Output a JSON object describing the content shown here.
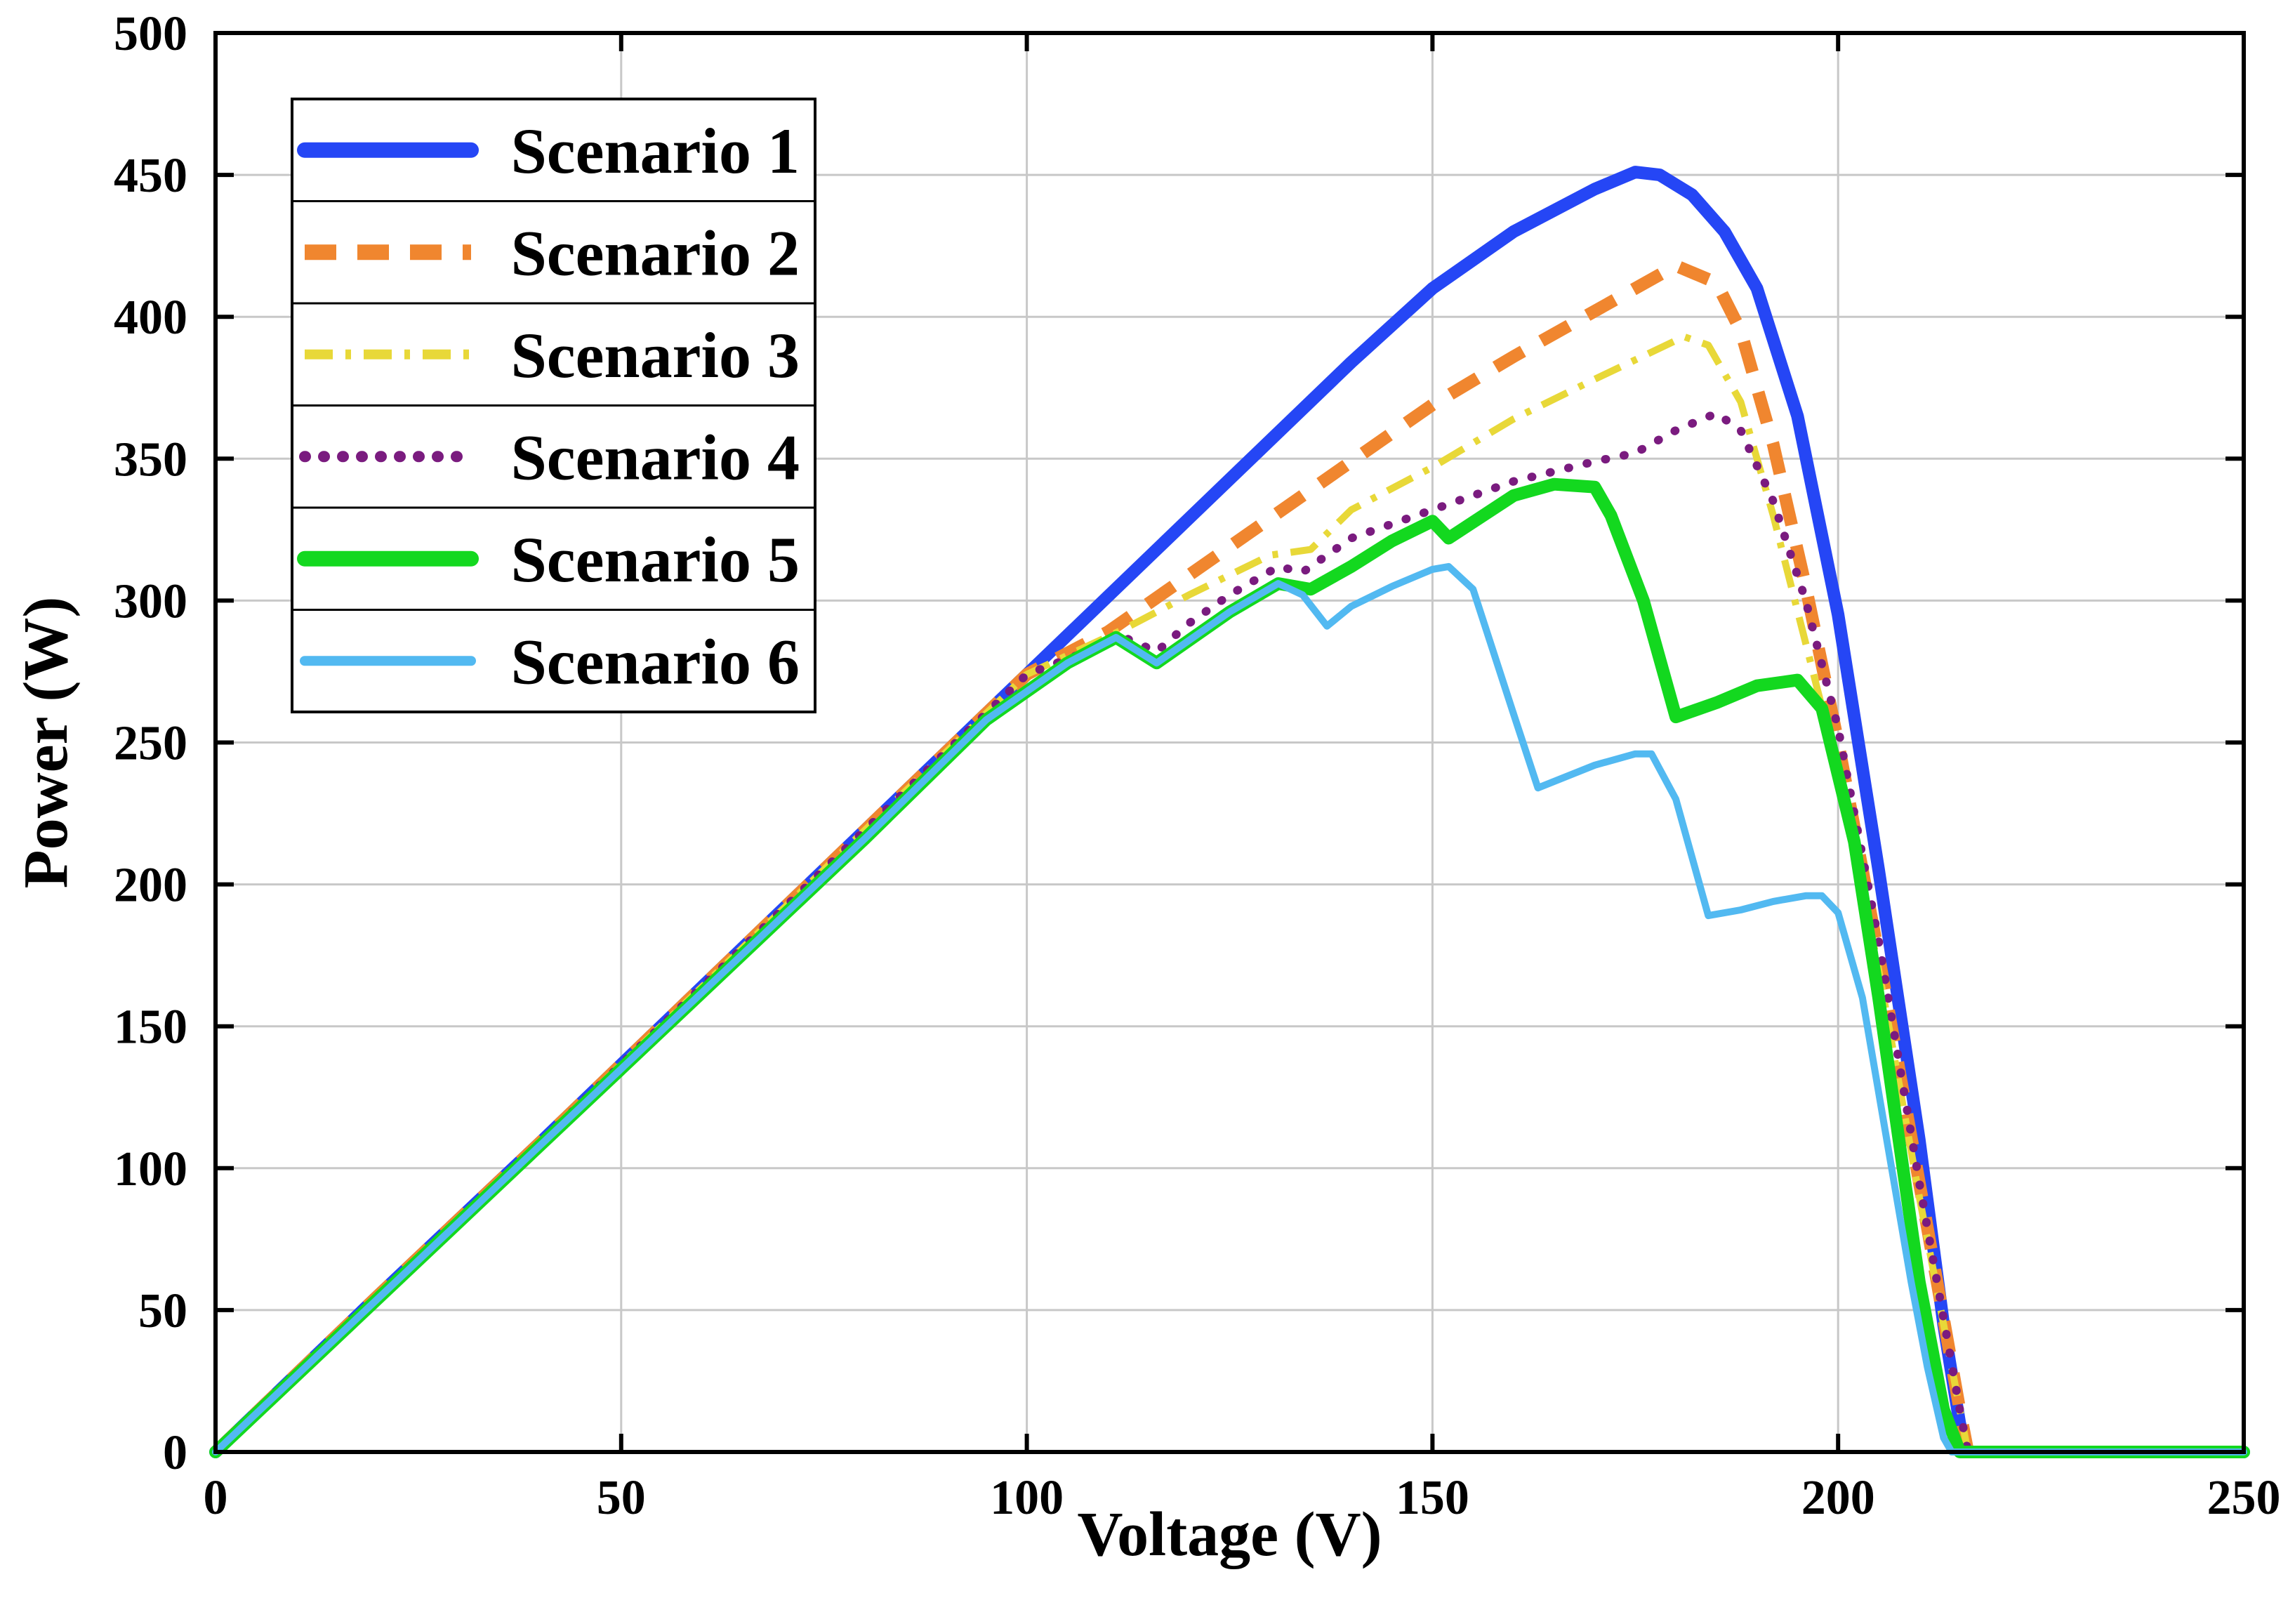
{
  "chart_data": {
    "type": "line",
    "title": "",
    "xlabel": "Voltage (V)",
    "ylabel": "Power (W)",
    "xlim": [
      0,
      250
    ],
    "ylim": [
      0,
      500
    ],
    "xticks": [
      0,
      50,
      100,
      150,
      200,
      250
    ],
    "yticks": [
      0,
      50,
      100,
      150,
      200,
      250,
      300,
      350,
      400,
      450,
      500
    ],
    "grid": true,
    "legend_position": "top-left",
    "series": [
      {
        "name": "Scenario 1",
        "color": "#2546f5",
        "style": "solid",
        "x": [
          0,
          20,
          40,
          60,
          80,
          100,
          120,
          140,
          150,
          160,
          170,
          175,
          178,
          182,
          186,
          190,
          195,
          200,
          205,
          210,
          213,
          215,
          216,
          250
        ],
        "y": [
          0,
          55,
          109,
          164,
          219,
          274,
          329,
          384,
          410,
          430,
          445,
          451,
          450,
          443,
          430,
          410,
          365,
          295,
          205,
          110,
          45,
          10,
          0,
          0
        ]
      },
      {
        "name": "Scenario 2",
        "color": "#f0862f",
        "style": "dashed",
        "x": [
          0,
          20,
          40,
          60,
          80,
          100,
          110,
          120,
          130,
          140,
          150,
          160,
          170,
          180,
          185,
          188,
          192,
          196,
          200,
          205,
          210,
          215,
          216,
          250
        ],
        "y": [
          0,
          55,
          109,
          164,
          219,
          274,
          289,
          309,
          329,
          349,
          369,
          386,
          402,
          418,
          412,
          395,
          355,
          305,
          250,
          175,
          95,
          15,
          0,
          0
        ]
      },
      {
        "name": "Scenario 3",
        "color": "#e8d838",
        "style": "dashdot",
        "x": [
          0,
          20,
          40,
          60,
          80,
          100,
          112,
          120,
          130,
          135,
          140,
          150,
          160,
          170,
          181,
          184,
          188,
          192,
          196,
          200,
          205,
          210,
          215,
          216,
          250
        ],
        "y": [
          0,
          55,
          109,
          164,
          219,
          274,
          290,
          302,
          316,
          318,
          332,
          347,
          364,
          378,
          393,
          390,
          370,
          330,
          285,
          240,
          170,
          90,
          15,
          0,
          0
        ]
      },
      {
        "name": "Scenario 4",
        "color": "#7a1b7f",
        "style": "dotted",
        "x": [
          0,
          20,
          40,
          60,
          80,
          100,
          112,
          116,
          120,
          125,
          131,
          134,
          140,
          150,
          160,
          170,
          175,
          180,
          185,
          188,
          192,
          196,
          200,
          205,
          210,
          215,
          216,
          250
        ],
        "y": [
          0,
          55,
          109,
          164,
          219,
          274,
          287,
          282,
          292,
          302,
          312,
          310,
          322,
          332,
          342,
          349,
          352,
          360,
          366,
          360,
          335,
          300,
          255,
          180,
          95,
          15,
          0,
          0
        ]
      },
      {
        "name": "Scenario 5",
        "color": "#13d81f",
        "style": "solid",
        "x": [
          0,
          20,
          40,
          60,
          80,
          95,
          105,
          111,
          116,
          120,
          125,
          131,
          135,
          140,
          145,
          150,
          152,
          160,
          165,
          170,
          172,
          176,
          180,
          185,
          190,
          195,
          198,
          202,
          205,
          208,
          210,
          213,
          215,
          250
        ],
        "y": [
          0,
          54,
          108,
          162,
          216,
          258,
          278,
          287,
          278,
          286,
          296,
          306,
          304,
          312,
          321,
          328,
          322,
          337,
          341,
          340,
          330,
          300,
          259,
          264,
          270,
          272,
          262,
          215,
          160,
          100,
          60,
          15,
          0,
          0
        ]
      },
      {
        "name": "Scenario 6",
        "color": "#52b9f1",
        "style": "solid",
        "x": [
          0,
          20,
          40,
          60,
          80,
          95,
          105,
          111,
          116,
          120,
          125,
          131,
          134,
          137,
          140,
          145,
          150,
          152,
          155,
          160,
          163,
          170,
          175,
          177,
          180,
          184,
          188,
          192,
          196,
          198,
          200,
          203,
          206,
          209,
          211,
          213,
          214,
          250
        ],
        "y": [
          0,
          54,
          108,
          162,
          216,
          258,
          278,
          287,
          278,
          286,
          296,
          306,
          302,
          291,
          298,
          305,
          311,
          312,
          304,
          260,
          234,
          242,
          246,
          246,
          230,
          189,
          191,
          194,
          196,
          196,
          190,
          160,
          110,
          60,
          30,
          5,
          0,
          0
        ]
      }
    ]
  }
}
